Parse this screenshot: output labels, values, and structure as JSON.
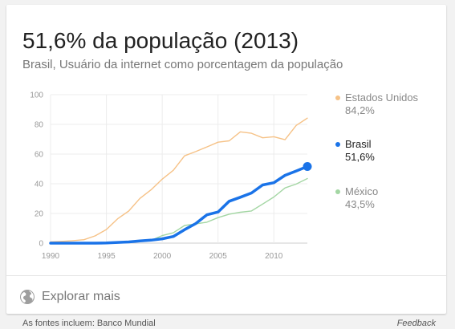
{
  "card": {
    "title": "51,6% da população (2013)",
    "subtitle": "Brasil, Usuário da internet como porcentagem da população"
  },
  "legend": [
    {
      "name": "Estados Unidos",
      "value": "84,2%",
      "color": "#f6c287",
      "text_color": "#888888"
    },
    {
      "name": "Brasil",
      "value": "51,6%",
      "color": "#1a73e8",
      "text_color": "#222222"
    },
    {
      "name": "México",
      "value": "43,5%",
      "color": "#a3d6a3",
      "text_color": "#888888"
    }
  ],
  "explore": {
    "label": "Explorar mais",
    "icon": "globe-icon"
  },
  "footer": {
    "source": "As fontes incluem: Banco Mundial",
    "feedback": "Feedback"
  },
  "chart_data": {
    "type": "line",
    "title": "",
    "xlabel": "",
    "ylabel": "",
    "xlim": [
      1990,
      2013
    ],
    "ylim": [
      0,
      100
    ],
    "x_ticks": [
      1990,
      1995,
      2000,
      2005,
      2010
    ],
    "y_ticks": [
      0,
      20,
      40,
      60,
      80,
      100
    ],
    "grid": true,
    "x": [
      1990,
      1991,
      1992,
      1993,
      1994,
      1995,
      1996,
      1997,
      1998,
      1999,
      2000,
      2001,
      2002,
      2003,
      2004,
      2005,
      2006,
      2007,
      2008,
      2009,
      2010,
      2011,
      2012,
      2013
    ],
    "series": [
      {
        "name": "Estados Unidos",
        "color": "#f6c287",
        "values": [
          0.8,
          1.2,
          1.7,
          2.3,
          4.9,
          9.2,
          16.4,
          21.6,
          30.1,
          35.9,
          43.1,
          49.1,
          58.8,
          61.7,
          64.8,
          68.0,
          68.9,
          75.0,
          74.0,
          71.0,
          71.7,
          69.7,
          79.3,
          84.2
        ]
      },
      {
        "name": "Brasil",
        "color": "#1a73e8",
        "values": [
          0.0,
          0.0,
          0.0,
          0.0,
          0.0,
          0.1,
          0.5,
          0.8,
          1.5,
          2.0,
          2.9,
          4.5,
          9.1,
          13.2,
          19.1,
          21.0,
          28.2,
          30.9,
          33.8,
          39.2,
          40.7,
          45.7,
          48.6,
          51.6
        ]
      },
      {
        "name": "México",
        "color": "#a3d6a3",
        "values": [
          0.0,
          0.0,
          0.0,
          0.0,
          0.0,
          0.1,
          0.2,
          0.6,
          1.3,
          1.9,
          5.1,
          7.0,
          11.9,
          12.9,
          14.1,
          17.2,
          19.5,
          20.8,
          21.7,
          26.3,
          31.1,
          37.2,
          39.8,
          43.5
        ]
      }
    ]
  }
}
